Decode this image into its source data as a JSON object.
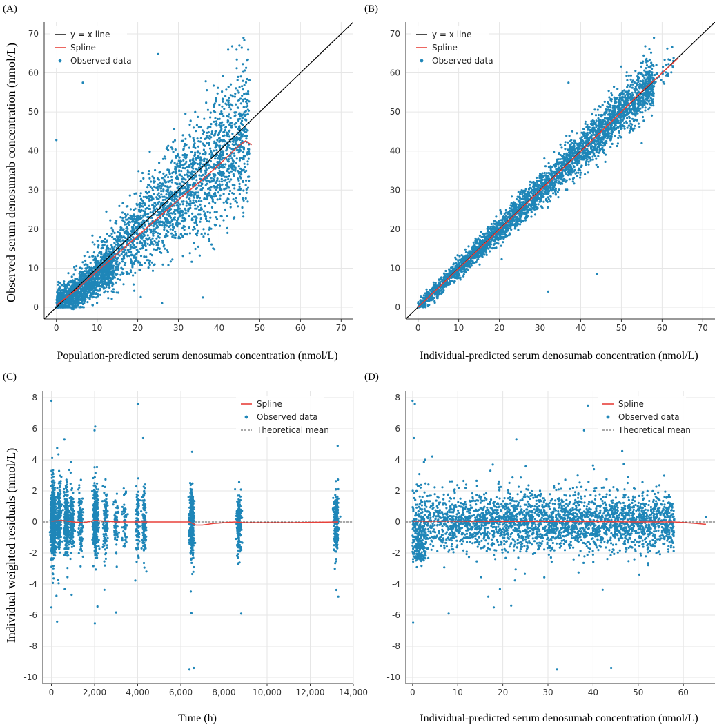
{
  "figure": {
    "ylabel_top": "Observed serum denosumab concentration (nmol/L)",
    "ylabel_bottom": "Individual weighted residuals (nmol/L)"
  },
  "colors": {
    "observed": "#1f86b8",
    "spline": "#e8413a",
    "identity": "#000000",
    "mean": "#555555"
  },
  "chart_data": [
    {
      "panel": "(A)",
      "type": "scatter",
      "title": "",
      "xlabel": "Population-predicted serum denosumab concentration (nmol/L)",
      "ylabel": "Observed serum denosumab concentration (nmol/L)",
      "xlim": [
        -3,
        73
      ],
      "ylim": [
        -3,
        73
      ],
      "xticks": [
        0,
        10,
        20,
        30,
        40,
        50,
        60,
        70
      ],
      "xtick_labels": [
        "0",
        "10",
        "20",
        "30",
        "40",
        "50",
        "60",
        "70"
      ],
      "yticks": [
        0,
        10,
        20,
        30,
        40,
        50,
        60,
        70
      ],
      "ytick_labels": [
        "0",
        "10",
        "20",
        "30",
        "40",
        "50",
        "60",
        "70"
      ],
      "grid": true,
      "legend_position": "top-left",
      "legend": [
        "y = x line",
        "Spline",
        "Observed data"
      ],
      "series": [
        {
          "name": "y = x line",
          "type": "line",
          "x": [
            -3,
            73
          ],
          "y": [
            -3,
            73
          ]
        },
        {
          "name": "Spline",
          "type": "line",
          "x": [
            0,
            5,
            10,
            15,
            20,
            25,
            30,
            35,
            40,
            43,
            45,
            46.5,
            48
          ],
          "y": [
            0.5,
            4.6,
            9.2,
            13.7,
            18.3,
            22.9,
            27.5,
            31.9,
            36.5,
            39.5,
            41.5,
            42.6,
            41.6
          ]
        },
        {
          "name": "Observed data",
          "type": "scatter",
          "x": [],
          "y": []
        }
      ]
    },
    {
      "panel": "(B)",
      "type": "scatter",
      "title": "",
      "xlabel": "Individual-predicted serum denosumab concentration (nmol/L)",
      "ylabel": "",
      "xlim": [
        -3,
        73
      ],
      "ylim": [
        -3,
        73
      ],
      "xticks": [
        0,
        10,
        20,
        30,
        40,
        50,
        60,
        70
      ],
      "xtick_labels": [
        "0",
        "10",
        "20",
        "30",
        "40",
        "50",
        "60",
        "70"
      ],
      "yticks": [
        0,
        10,
        20,
        30,
        40,
        50,
        60,
        70
      ],
      "ytick_labels": [
        "0",
        "10",
        "20",
        "30",
        "40",
        "50",
        "60",
        "70"
      ],
      "grid": true,
      "legend_position": "top-left",
      "legend": [
        "y = x line",
        "Spline",
        "Observed data"
      ],
      "series": [
        {
          "name": "y = x line",
          "type": "line",
          "x": [
            -3,
            73
          ],
          "y": [
            -3,
            73
          ]
        },
        {
          "name": "Spline",
          "type": "line",
          "x": [
            0,
            10,
            20,
            30,
            40,
            50,
            55,
            60,
            64
          ],
          "y": [
            0,
            9.9,
            19.9,
            29.9,
            39.9,
            50.0,
            55.2,
            60.0,
            63.8
          ]
        },
        {
          "name": "Observed data",
          "type": "scatter",
          "x": [],
          "y": []
        }
      ]
    },
    {
      "panel": "(C)",
      "type": "scatter",
      "title": "",
      "xlabel": "Time (h)",
      "ylabel": "Individual weighted residuals (nmol/L)",
      "xlim": [
        -400,
        14000
      ],
      "ylim": [
        -10.4,
        8.4
      ],
      "xticks": [
        0,
        2000,
        4000,
        6000,
        8000,
        10000,
        12000,
        14000
      ],
      "xtick_labels": [
        "0",
        "2,000",
        "4,000",
        "6,000",
        "8,000",
        "10,000",
        "12,000",
        "14,000"
      ],
      "yticks": [
        8,
        6,
        4,
        2,
        0,
        -2,
        -4,
        -6,
        -8,
        -10
      ],
      "ytick_labels": [
        "8",
        "6",
        "4",
        "2",
        "0",
        "-2",
        "-4",
        "-6",
        "-8",
        "-10"
      ],
      "grid": true,
      "legend_position": "top-right",
      "legend": [
        "Spline",
        "Observed data",
        "Theoretical mean"
      ],
      "series": [
        {
          "name": "Spline",
          "type": "line",
          "x": [
            0,
            500,
            1000,
            1500,
            2000,
            2500,
            3000,
            4000,
            5000,
            6000,
            6400,
            6700,
            7000,
            7500,
            8000,
            8500,
            9000,
            11000,
            13300
          ],
          "y": [
            0.05,
            0.1,
            0.0,
            -0.05,
            0.1,
            0.05,
            0.0,
            0.0,
            0.0,
            0.0,
            0.0,
            -0.2,
            -0.2,
            -0.1,
            -0.05,
            0.0,
            -0.05,
            -0.05,
            0.0
          ]
        },
        {
          "name": "Theoretical mean",
          "type": "line",
          "x": [
            -400,
            14000
          ],
          "y": [
            0,
            0
          ]
        },
        {
          "name": "Observed data",
          "type": "scatter",
          "x": [],
          "y": []
        }
      ]
    },
    {
      "panel": "(D)",
      "type": "scatter",
      "title": "",
      "xlabel": "Individual-predicted serum denosumab concentration (nmol/L)",
      "ylabel": "",
      "xlim": [
        -1.5,
        67
      ],
      "ylim": [
        -10.4,
        8.4
      ],
      "xticks": [
        0,
        10,
        20,
        30,
        40,
        50,
        60
      ],
      "xtick_labels": [
        "0",
        "10",
        "20",
        "30",
        "40",
        "50",
        "60"
      ],
      "yticks": [
        8,
        6,
        4,
        2,
        0,
        -2,
        -4,
        -6,
        -8,
        -10
      ],
      "ytick_labels": [
        "8",
        "6",
        "4",
        "2",
        "0",
        "-2",
        "-4",
        "-6",
        "-8",
        "-10"
      ],
      "grid": true,
      "legend_position": "top-right",
      "legend": [
        "Spline",
        "Observed data",
        "Theoretical mean"
      ],
      "series": [
        {
          "name": "Spline",
          "type": "line",
          "x": [
            0,
            10,
            20,
            30,
            40,
            50,
            58,
            62,
            65
          ],
          "y": [
            0.05,
            0.05,
            0.03,
            0.03,
            0.02,
            0.0,
            0.0,
            -0.08,
            -0.15
          ]
        },
        {
          "name": "Theoretical mean",
          "type": "line",
          "x": [
            -1.5,
            67
          ],
          "y": [
            0,
            0
          ]
        },
        {
          "name": "Observed data",
          "type": "scatter",
          "x": [],
          "y": []
        }
      ]
    }
  ]
}
